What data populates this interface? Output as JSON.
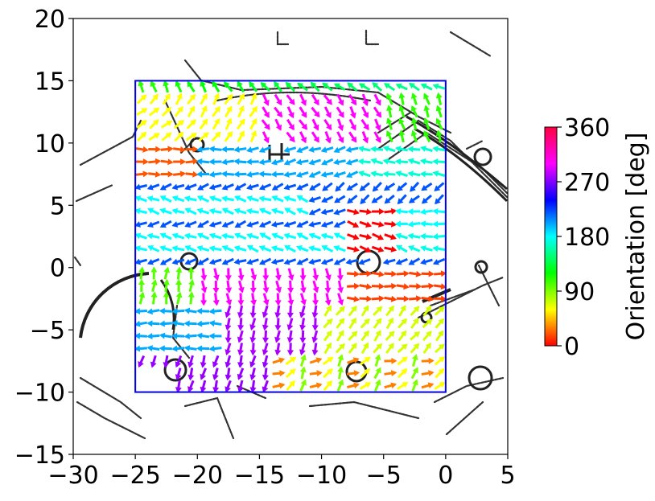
{
  "chart_data": {
    "type": "quiver",
    "xlim": [
      -30,
      5
    ],
    "ylim": [
      -15,
      20
    ],
    "x_ticks": [
      "−30",
      "−25",
      "−20",
      "−15",
      "−10",
      "−5",
      "0",
      "5"
    ],
    "y_ticks": [
      "−15",
      "−10",
      "−5",
      "0",
      "5",
      "10",
      "15",
      "20"
    ],
    "x_tick_values": [
      -30,
      -25,
      -20,
      -15,
      -10,
      -5,
      0,
      5
    ],
    "y_tick_values": [
      -15,
      -10,
      -5,
      0,
      5,
      10,
      15,
      20
    ],
    "region_rect": {
      "x0": -25,
      "x1": 0,
      "y0": -10,
      "y1": 15,
      "color": "#0000ee"
    },
    "colorbar": {
      "label": "Orientation [deg]",
      "min": 0,
      "max": 360,
      "ticks": [
        "0",
        "90",
        "180",
        "270",
        "360"
      ],
      "tick_values": [
        0,
        90,
        180,
        270,
        360
      ],
      "colormap": "hsv"
    },
    "background": "occupancy map (black point cloud walls)",
    "grid_step": 1,
    "field_description": "orientation field sampled on 1 m grid inside region"
  }
}
